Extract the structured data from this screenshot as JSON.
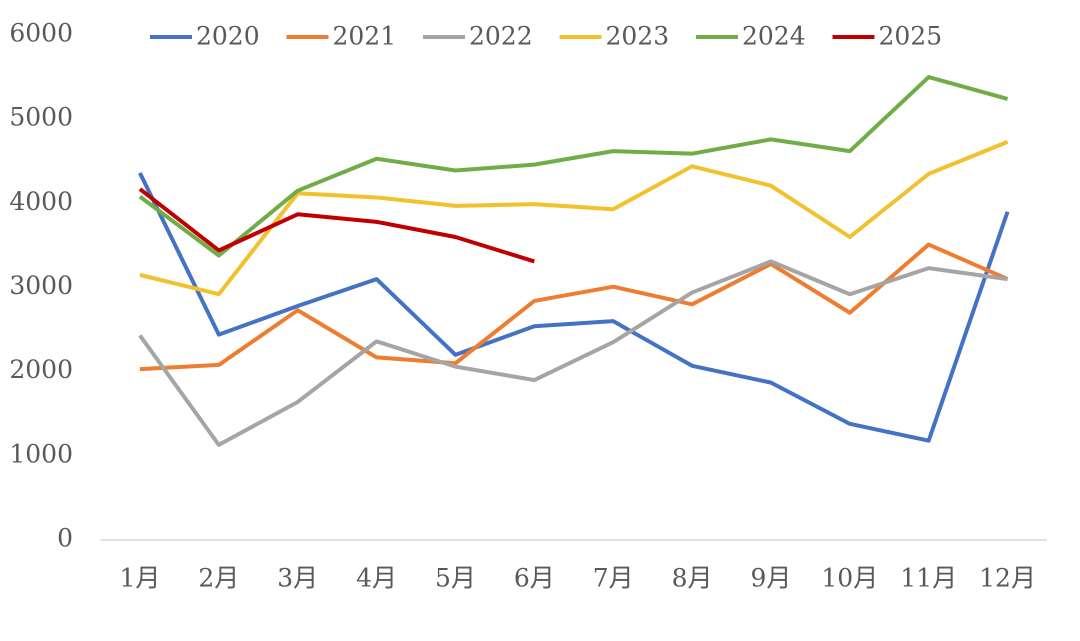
{
  "chart_data": {
    "type": "line",
    "categories": [
      "1月",
      "2月",
      "3月",
      "4月",
      "5月",
      "6月",
      "7月",
      "8月",
      "9月",
      "10月",
      "11月",
      "12月"
    ],
    "series": [
      {
        "name": "2020",
        "color": "#4472c4",
        "values": [
          4360,
          2440,
          2780,
          3100,
          2200,
          2540,
          2600,
          2070,
          1870,
          1380,
          1180,
          3900
        ]
      },
      {
        "name": "2021",
        "color": "#ed7d31",
        "values": [
          2030,
          2080,
          2730,
          2170,
          2100,
          2840,
          3010,
          2800,
          3280,
          2700,
          3510,
          3100
        ]
      },
      {
        "name": "2022",
        "color": "#a5a5a5",
        "values": [
          2430,
          1130,
          1640,
          2360,
          2060,
          1900,
          2350,
          2940,
          3310,
          2920,
          3230,
          3100
        ]
      },
      {
        "name": "2023",
        "color": "#f2c12e",
        "values": [
          3150,
          2920,
          4120,
          4070,
          3970,
          3990,
          3930,
          4440,
          4210,
          3600,
          4350,
          4730
        ]
      },
      {
        "name": "2024",
        "color": "#70ad47",
        "values": [
          4080,
          3380,
          4150,
          4530,
          4390,
          4460,
          4620,
          4590,
          4760,
          4620,
          5500,
          5240
        ]
      },
      {
        "name": "2025",
        "color": "#c00000",
        "values": [
          4170,
          3440,
          3870,
          3780,
          3600,
          3310,
          null,
          null,
          null,
          null,
          null,
          null
        ]
      }
    ],
    "ylim": [
      0,
      6000
    ],
    "yticks": [
      0,
      1000,
      2000,
      3000,
      4000,
      5000,
      6000
    ],
    "grid": false,
    "legend": "top"
  }
}
